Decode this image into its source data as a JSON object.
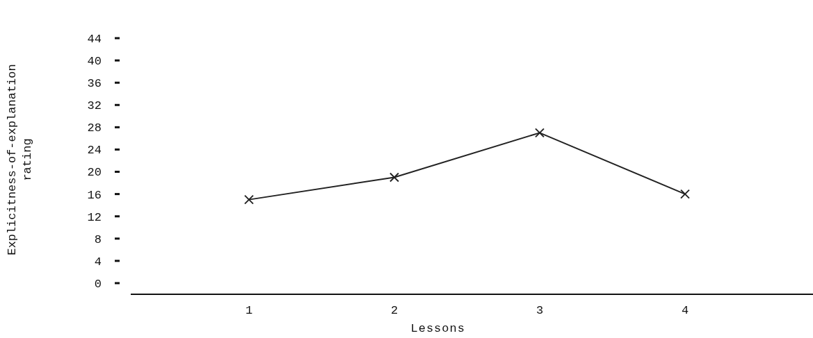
{
  "chart_data": {
    "type": "line",
    "xlabel": "Lessons",
    "ylabel": "Explicitness-of-explanation\nrating",
    "categories": [
      "1",
      "2",
      "3",
      "4"
    ],
    "series": [
      {
        "color": "#222222",
        "values": [
          15,
          19,
          27,
          16
        ]
      }
    ],
    "ylim": [
      -2,
      44
    ],
    "yticks": [
      0,
      4,
      8,
      12,
      16,
      20,
      24,
      28,
      32,
      36,
      40,
      44
    ],
    "marker": "cross",
    "grid": false
  }
}
